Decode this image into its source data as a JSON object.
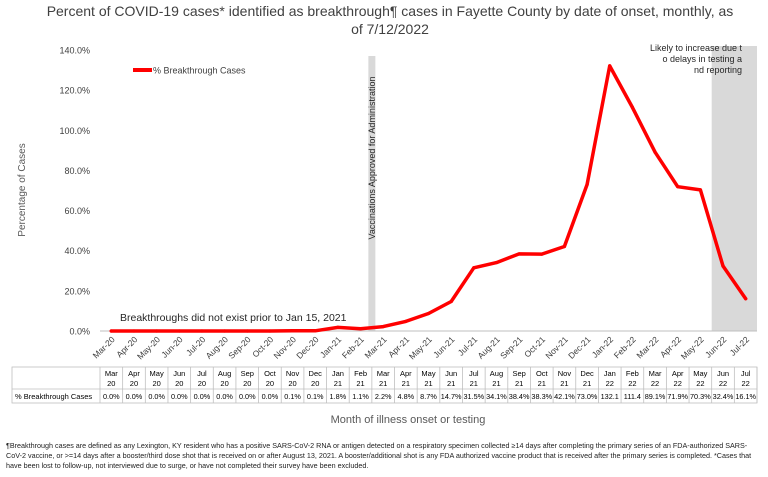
{
  "chart_data": {
    "type": "line",
    "title": "Percent of COVID-19 cases* identified as breakthrough¶ cases in Fayette County by date of onset, monthly, as of 7/12/2022",
    "xlabel": "Month of illness onset or testing",
    "ylabel": "Percentage of Cases",
    "ylim": [
      0,
      140
    ],
    "yticks": [
      "0.0%",
      "20.0%",
      "40.0%",
      "60.0%",
      "80.0%",
      "100.0%",
      "120.0%",
      "140.0%"
    ],
    "categories": [
      "Mar-20",
      "Apr-20",
      "May-20",
      "Jun-20",
      "Jul-20",
      "Aug-20",
      "Sep-20",
      "Oct-20",
      "Nov-20",
      "Dec-20",
      "Jan-21",
      "Feb-21",
      "Mar-21",
      "Apr-21",
      "May-21",
      "Jun-21",
      "Jul-21",
      "Aug-21",
      "Sep-21",
      "Oct-21",
      "Nov-21",
      "Dec-21",
      "Jan-22",
      "Feb-22",
      "Mar-22",
      "Apr-22",
      "May-22",
      "Jun-22",
      "Jul-22"
    ],
    "series": [
      {
        "name": "% Breakthrough Cases",
        "color": "#ff0000",
        "values": [
          0,
          0,
          0,
          0,
          0,
          0,
          0,
          0,
          0.1,
          0.1,
          1.8,
          1.1,
          2.2,
          4.8,
          8.7,
          14.7,
          31.5,
          34.1,
          38.4,
          38.3,
          42.1,
          73.0,
          132.1,
          111.4,
          89.1,
          71.9,
          70.3,
          32.4,
          16.1
        ],
        "table_labels": [
          "0.0%",
          "0.0%",
          "0.0%",
          "0.0%",
          "0.0%",
          "0.0%",
          "0.0%",
          "0.0%",
          "0.1%",
          "0.1%",
          "1.8%",
          "1.1%",
          "2.2%",
          "4.8%",
          "8.7%",
          "14.7%",
          "31.5%",
          "34.1%",
          "38.4%",
          "38.3%",
          "42.1%",
          "73.0%",
          "132.1",
          "111.4",
          "89.1%",
          "71.9%",
          "70.3%",
          "32.4%",
          "16.1%"
        ]
      }
    ],
    "legend_position": "top-left",
    "annotations": {
      "vaccination_label": "Vaccinations Approved for Administration",
      "breakthrough_note": "Breakthroughs did not exist prior to Jan 15, 2021",
      "shaded_note": "Likely to increase due to delays in testing and reporting"
    },
    "colors": {
      "line": "#ff0000",
      "shade": "#d9d9d9",
      "vaccination_bar": "#d9d9d9"
    },
    "grid": false
  },
  "footnote": "¶Breakthrough cases are defined as any Lexington, KY resident who has a positive SARS-CoV-2 RNA or antigen detected on a respiratory specimen collected ≥14 days after completing the primary series of an FDA-authorized SARS-CoV-2 vaccine, or >=14 days after a booster/third dose shot that is received on or after August 13, 2021.  A booster/additional shot is any FDA authorized vaccine product that is received after the primary series is completed. *Cases that have been lost to follow-up, not interviewed due to surge, or have not completed their survey have been excluded."
}
